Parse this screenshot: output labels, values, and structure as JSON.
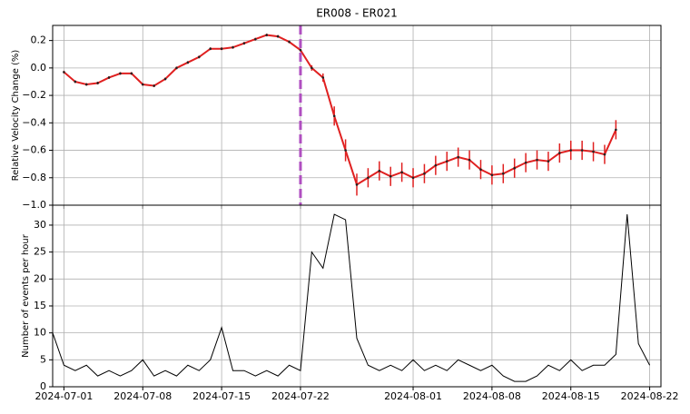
{
  "chart_data": [
    {
      "type": "line",
      "title": "ER008 - ER021",
      "ylabel": "Relative Velocity Change (%)",
      "x": [
        "2024-07-01",
        "2024-07-02",
        "2024-07-03",
        "2024-07-04",
        "2024-07-05",
        "2024-07-06",
        "2024-07-07",
        "2024-07-08",
        "2024-07-09",
        "2024-07-10",
        "2024-07-11",
        "2024-07-12",
        "2024-07-13",
        "2024-07-14",
        "2024-07-15",
        "2024-07-16",
        "2024-07-17",
        "2024-07-18",
        "2024-07-19",
        "2024-07-20",
        "2024-07-21",
        "2024-07-22",
        "2024-07-23",
        "2024-07-24",
        "2024-07-25",
        "2024-07-26",
        "2024-07-27",
        "2024-07-28",
        "2024-07-29",
        "2024-07-30",
        "2024-07-31",
        "2024-08-01",
        "2024-08-02",
        "2024-08-03",
        "2024-08-04",
        "2024-08-05",
        "2024-08-06",
        "2024-08-07",
        "2024-08-08",
        "2024-08-09",
        "2024-08-10",
        "2024-08-11",
        "2024-08-12",
        "2024-08-13",
        "2024-08-14",
        "2024-08-15",
        "2024-08-16",
        "2024-08-17",
        "2024-08-18",
        "2024-08-19"
      ],
      "series": [
        {
          "color": "#e02020",
          "values": [
            -0.03,
            -0.1,
            -0.12,
            -0.11,
            -0.07,
            -0.04,
            -0.04,
            -0.12,
            -0.13,
            -0.08,
            0.0,
            0.04,
            0.08,
            0.14,
            0.14,
            0.15,
            0.18,
            0.21,
            0.24,
            0.23,
            0.19,
            0.13,
            0.0,
            -0.07,
            -0.35,
            -0.6,
            -0.85,
            -0.8,
            -0.75,
            -0.79,
            -0.76,
            -0.8,
            -0.77,
            -0.71,
            -0.68,
            -0.65,
            -0.67,
            -0.74,
            -0.78,
            -0.77,
            -0.73,
            -0.69,
            -0.67,
            -0.68,
            -0.62,
            -0.6,
            -0.6,
            -0.61,
            -0.63,
            -0.45
          ],
          "error": [
            0.01,
            0.01,
            0.01,
            0.01,
            0.01,
            0.01,
            0.01,
            0.01,
            0.01,
            0.01,
            0.01,
            0.01,
            0.01,
            0.01,
            0.01,
            0.01,
            0.01,
            0.01,
            0.01,
            0.01,
            0.01,
            0.01,
            0.02,
            0.03,
            0.07,
            0.08,
            0.08,
            0.07,
            0.07,
            0.07,
            0.07,
            0.07,
            0.07,
            0.07,
            0.07,
            0.07,
            0.07,
            0.07,
            0.07,
            0.07,
            0.07,
            0.07,
            0.07,
            0.07,
            0.07,
            0.07,
            0.07,
            0.07,
            0.07,
            0.07
          ]
        }
      ],
      "vline": {
        "x": "2024-07-22",
        "color": "#b04fc0"
      },
      "xlim": [
        "2024-06-30",
        "2024-08-23"
      ],
      "xticks": [
        "2024-07-01",
        "2024-07-08",
        "2024-07-15",
        "2024-07-22",
        "2024-08-01",
        "2024-08-08",
        "2024-08-15",
        "2024-08-22"
      ],
      "ylim": [
        -1.0,
        0.31
      ],
      "yticks": [
        {
          "value": -1.0,
          "label": "−1.0"
        },
        {
          "value": -0.8,
          "label": "−0.8"
        },
        {
          "value": -0.6,
          "label": "−0.6"
        },
        {
          "value": -0.4,
          "label": "−0.4"
        },
        {
          "value": -0.2,
          "label": "−0.2"
        },
        {
          "value": 0,
          "label": "0.0"
        },
        {
          "value": 0.2,
          "label": "0.2"
        }
      ],
      "grid": true
    },
    {
      "type": "line",
      "ylabel": "Number of events per hour",
      "x": [
        "2024-06-30",
        "2024-07-01",
        "2024-07-02",
        "2024-07-03",
        "2024-07-04",
        "2024-07-05",
        "2024-07-06",
        "2024-07-07",
        "2024-07-08",
        "2024-07-09",
        "2024-07-10",
        "2024-07-11",
        "2024-07-12",
        "2024-07-13",
        "2024-07-14",
        "2024-07-15",
        "2024-07-16",
        "2024-07-17",
        "2024-07-18",
        "2024-07-19",
        "2024-07-20",
        "2024-07-21",
        "2024-07-22",
        "2024-07-23",
        "2024-07-24",
        "2024-07-25",
        "2024-07-26",
        "2024-07-27",
        "2024-07-28",
        "2024-07-29",
        "2024-07-30",
        "2024-07-31",
        "2024-08-01",
        "2024-08-02",
        "2024-08-03",
        "2024-08-04",
        "2024-08-05",
        "2024-08-06",
        "2024-08-07",
        "2024-08-08",
        "2024-08-09",
        "2024-08-10",
        "2024-08-11",
        "2024-08-12",
        "2024-08-13",
        "2024-08-14",
        "2024-08-15",
        "2024-08-16",
        "2024-08-17",
        "2024-08-18",
        "2024-08-19",
        "2024-08-20",
        "2024-08-21",
        "2024-08-22"
      ],
      "series": [
        {
          "color": "#000000",
          "values": [
            10,
            4,
            3,
            4,
            2,
            3,
            2,
            3,
            5,
            2,
            3,
            2,
            4,
            3,
            5,
            11,
            3,
            3,
            2,
            3,
            2,
            4,
            3,
            25,
            22,
            32,
            31,
            9,
            4,
            3,
            4,
            3,
            5,
            3,
            4,
            3,
            5,
            4,
            3,
            4,
            2,
            1,
            1,
            2,
            4,
            3,
            5,
            3,
            4,
            4,
            6,
            32,
            8,
            4
          ]
        }
      ],
      "xlim": [
        "2024-06-30",
        "2024-08-23"
      ],
      "xticks": [
        "2024-07-01",
        "2024-07-08",
        "2024-07-15",
        "2024-07-22",
        "2024-08-01",
        "2024-08-08",
        "2024-08-15",
        "2024-08-22"
      ],
      "ylim": [
        0,
        33.7
      ],
      "yticks": [
        0,
        5,
        10,
        15,
        20,
        25,
        30
      ],
      "grid": true
    }
  ]
}
